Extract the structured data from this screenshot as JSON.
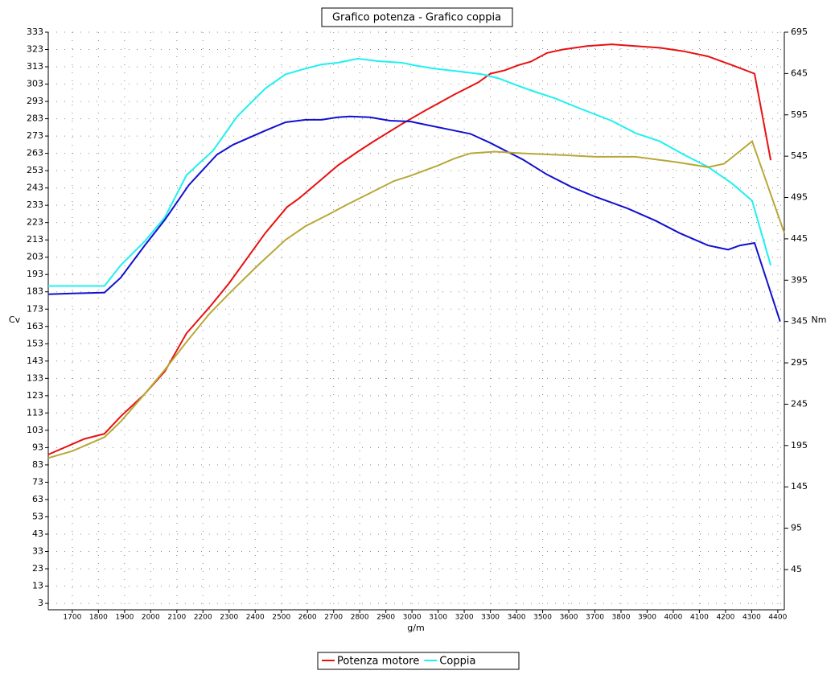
{
  "chart_data": {
    "type": "line",
    "title": "Grafico potenza - Grafico coppia",
    "x_label": "g/m",
    "y_label": "Cv",
    "y2_label": "Nm",
    "grid": true,
    "xlim": [
      1608,
      4425
    ],
    "xticks": [
      1700,
      1800,
      1900,
      2000,
      2100,
      2200,
      2300,
      2400,
      2500,
      2600,
      2700,
      2800,
      2900,
      3000,
      3100,
      3200,
      3300,
      3400,
      3500,
      3600,
      3700,
      3800,
      3900,
      4000,
      4100,
      4200,
      4300,
      4400
    ],
    "ylim": [
      -0.7,
      333
    ],
    "yticks": [
      3,
      13,
      23,
      33,
      43,
      53,
      63,
      73,
      83,
      93,
      103,
      113,
      123,
      133,
      143,
      153,
      163,
      173,
      183,
      193,
      203,
      213,
      223,
      233,
      243,
      253,
      263,
      273,
      283,
      293,
      303,
      313,
      323,
      333
    ],
    "y2lim": [
      -3.7,
      695
    ],
    "y2ticks": [
      45,
      95,
      145,
      195,
      245,
      295,
      345,
      395,
      445,
      495,
      545,
      595,
      645,
      695
    ],
    "series": [
      {
        "name": "Potenza motore",
        "color": "#e81010",
        "axis": "y",
        "x": [
          1608,
          1700,
          1746,
          1823,
          1885,
          1977,
          2054,
          2137,
          2230,
          2300,
          2439,
          2522,
          2568,
          2654,
          2716,
          2793,
          2854,
          2962,
          3054,
          3162,
          3254,
          3300,
          3356,
          3408,
          3455,
          3517,
          3578,
          3670,
          3763,
          3855,
          3948,
          4040,
          4133,
          4225,
          4311,
          4373
        ],
        "values": [
          89,
          95,
          98,
          101,
          111,
          124,
          137,
          159,
          175,
          188,
          217,
          232,
          237,
          248,
          256,
          264,
          270,
          280,
          288,
          297,
          304,
          309,
          311,
          314,
          316,
          321,
          323,
          325,
          326,
          325,
          324,
          322,
          319,
          314,
          309,
          259
        ]
      },
      {
        "name": "Coppia",
        "color": "#20f0f0",
        "axis": "y2",
        "x": [
          1608,
          1700,
          1746,
          1823,
          1885,
          1977,
          2054,
          2137,
          2239,
          2331,
          2439,
          2516,
          2593,
          2654,
          2716,
          2793,
          2870,
          2962,
          3008,
          3085,
          3193,
          3270,
          3332,
          3408,
          3470,
          3547,
          3640,
          3763,
          3855,
          3948,
          4040,
          4133,
          4225,
          4302,
          4373
        ],
        "values": [
          388,
          388,
          388,
          388,
          413,
          442,
          471,
          522,
          552,
          593,
          627,
          644,
          651,
          656,
          658,
          663,
          660,
          658,
          655,
          651,
          647,
          644,
          639,
          630,
          623,
          615,
          603,
          588,
          573,
          563,
          547,
          532,
          512,
          491,
          413
        ]
      },
      {
        "color": "#1010d0",
        "axis": "y2",
        "x": [
          1608,
          1700,
          1823,
          1885,
          1977,
          2054,
          2146,
          2254,
          2316,
          2439,
          2516,
          2593,
          2654,
          2716,
          2762,
          2839,
          2916,
          2993,
          3054,
          3147,
          3224,
          3300,
          3424,
          3516,
          3609,
          3701,
          3824,
          3932,
          4024,
          4133,
          4210,
          4255,
          4311,
          4409
        ],
        "values": [
          378,
          379,
          380,
          398,
          437,
          468,
          510,
          547,
          559,
          576,
          586,
          589,
          589,
          592,
          593,
          592,
          588,
          587,
          583,
          577,
          572,
          561,
          541,
          523,
          508,
          496,
          482,
          467,
          452,
          437,
          432,
          437,
          440,
          345
        ]
      },
      {
        "color": "#b8a838",
        "axis": "y",
        "x": [
          1608,
          1700,
          1823,
          1885,
          1977,
          2054,
          2137,
          2223,
          2300,
          2408,
          2516,
          2593,
          2685,
          2746,
          2839,
          2931,
          2993,
          3100,
          3162,
          3224,
          3316,
          3424,
          3578,
          3701,
          3855,
          4009,
          4133,
          4195,
          4302,
          4425
        ],
        "values": [
          87,
          91,
          99,
          108,
          124,
          138,
          154,
          170,
          182,
          198,
          213,
          221,
          228,
          233,
          240,
          247,
          250,
          256,
          260,
          263,
          264,
          263,
          262,
          261,
          261,
          258,
          255,
          257,
          270,
          217
        ]
      }
    ]
  }
}
